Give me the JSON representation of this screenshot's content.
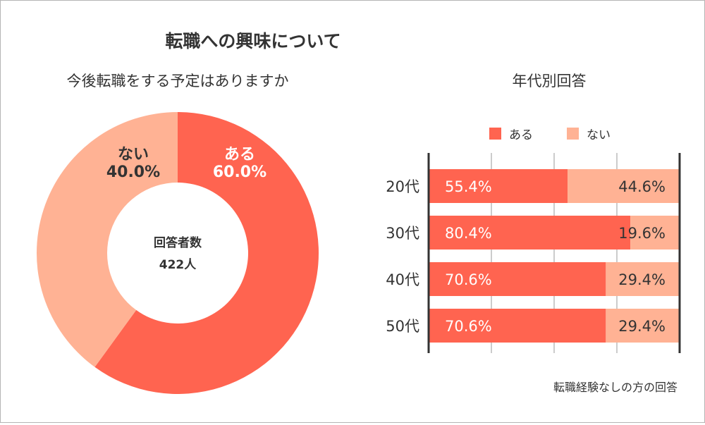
{
  "title": "転職への興味について",
  "colors": {
    "yes": "#FF6450",
    "no": "#FFB294",
    "text_dark": "#333333",
    "text_light": "#ffffff",
    "grid": "#cccccc"
  },
  "chart_data": [
    {
      "type": "pie",
      "title": "今後転職をする予定はありますか",
      "center_label": "回答者数",
      "center_value": "422人",
      "slices": [
        {
          "label": "ある",
          "value": 60.0,
          "display": "60.0%"
        },
        {
          "label": "ない",
          "value": 40.0,
          "display": "40.0%"
        }
      ]
    },
    {
      "type": "bar",
      "orientation": "horizontal-stacked",
      "title": "年代別回答",
      "legend": [
        "ある",
        "ない"
      ],
      "categories": [
        "20代",
        "30代",
        "40代",
        "50代"
      ],
      "series": [
        {
          "name": "ある",
          "values": [
            55.4,
            80.4,
            70.6,
            70.6
          ],
          "display": [
            "55.4%",
            "80.4%",
            "70.6%",
            "70.6%"
          ]
        },
        {
          "name": "ない",
          "values": [
            44.6,
            19.6,
            29.4,
            29.4
          ],
          "display": [
            "44.6%",
            "19.6%",
            "29.4%",
            "29.4%"
          ]
        }
      ],
      "xlim": [
        0,
        100
      ],
      "grid": true,
      "note": "転職経験なしの方の回答"
    }
  ]
}
